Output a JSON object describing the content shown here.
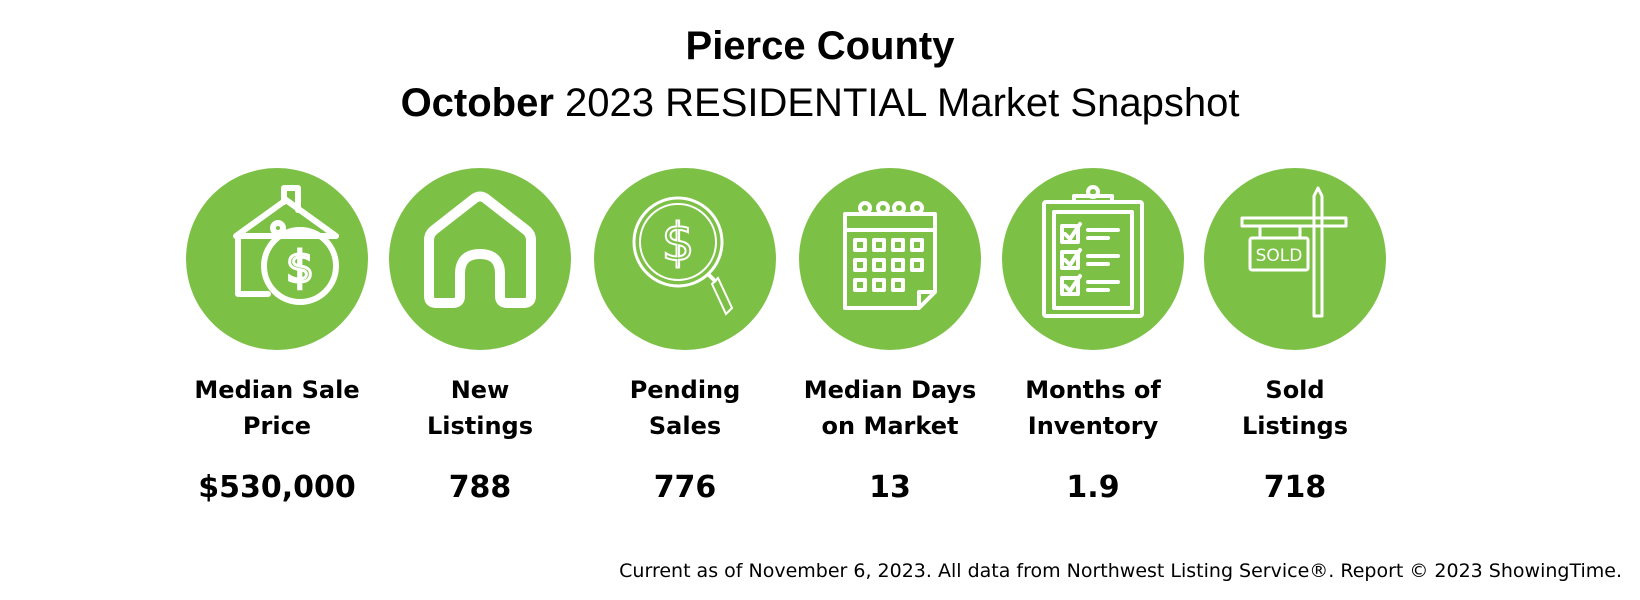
{
  "header": {
    "title": "Pierce County",
    "subtitle_month": "October",
    "subtitle_rest": " 2023 RESIDENTIAL Market Snapshot"
  },
  "accent_color": "#7DC046",
  "stats": [
    {
      "label": "Median Sale\nPrice",
      "value": "$530,000",
      "icon": "house-dollar-icon"
    },
    {
      "label": "New\nListings",
      "value": "788",
      "icon": "house-icon"
    },
    {
      "label": "Pending\nSales",
      "value": "776",
      "icon": "magnifier-dollar-icon"
    },
    {
      "label": "Median Days\non Market",
      "value": "13",
      "icon": "calendar-icon"
    },
    {
      "label": "Months of\nInventory",
      "value": "1.9",
      "icon": "clipboard-checklist-icon"
    },
    {
      "label": "Sold\nListings",
      "value": "718",
      "icon": "sold-sign-icon"
    }
  ],
  "sold_sign_text": "SOLD",
  "footer": "Current as of November 6, 2023. All data from Northwest Listing Service®. Report © 2023 ShowingTime."
}
